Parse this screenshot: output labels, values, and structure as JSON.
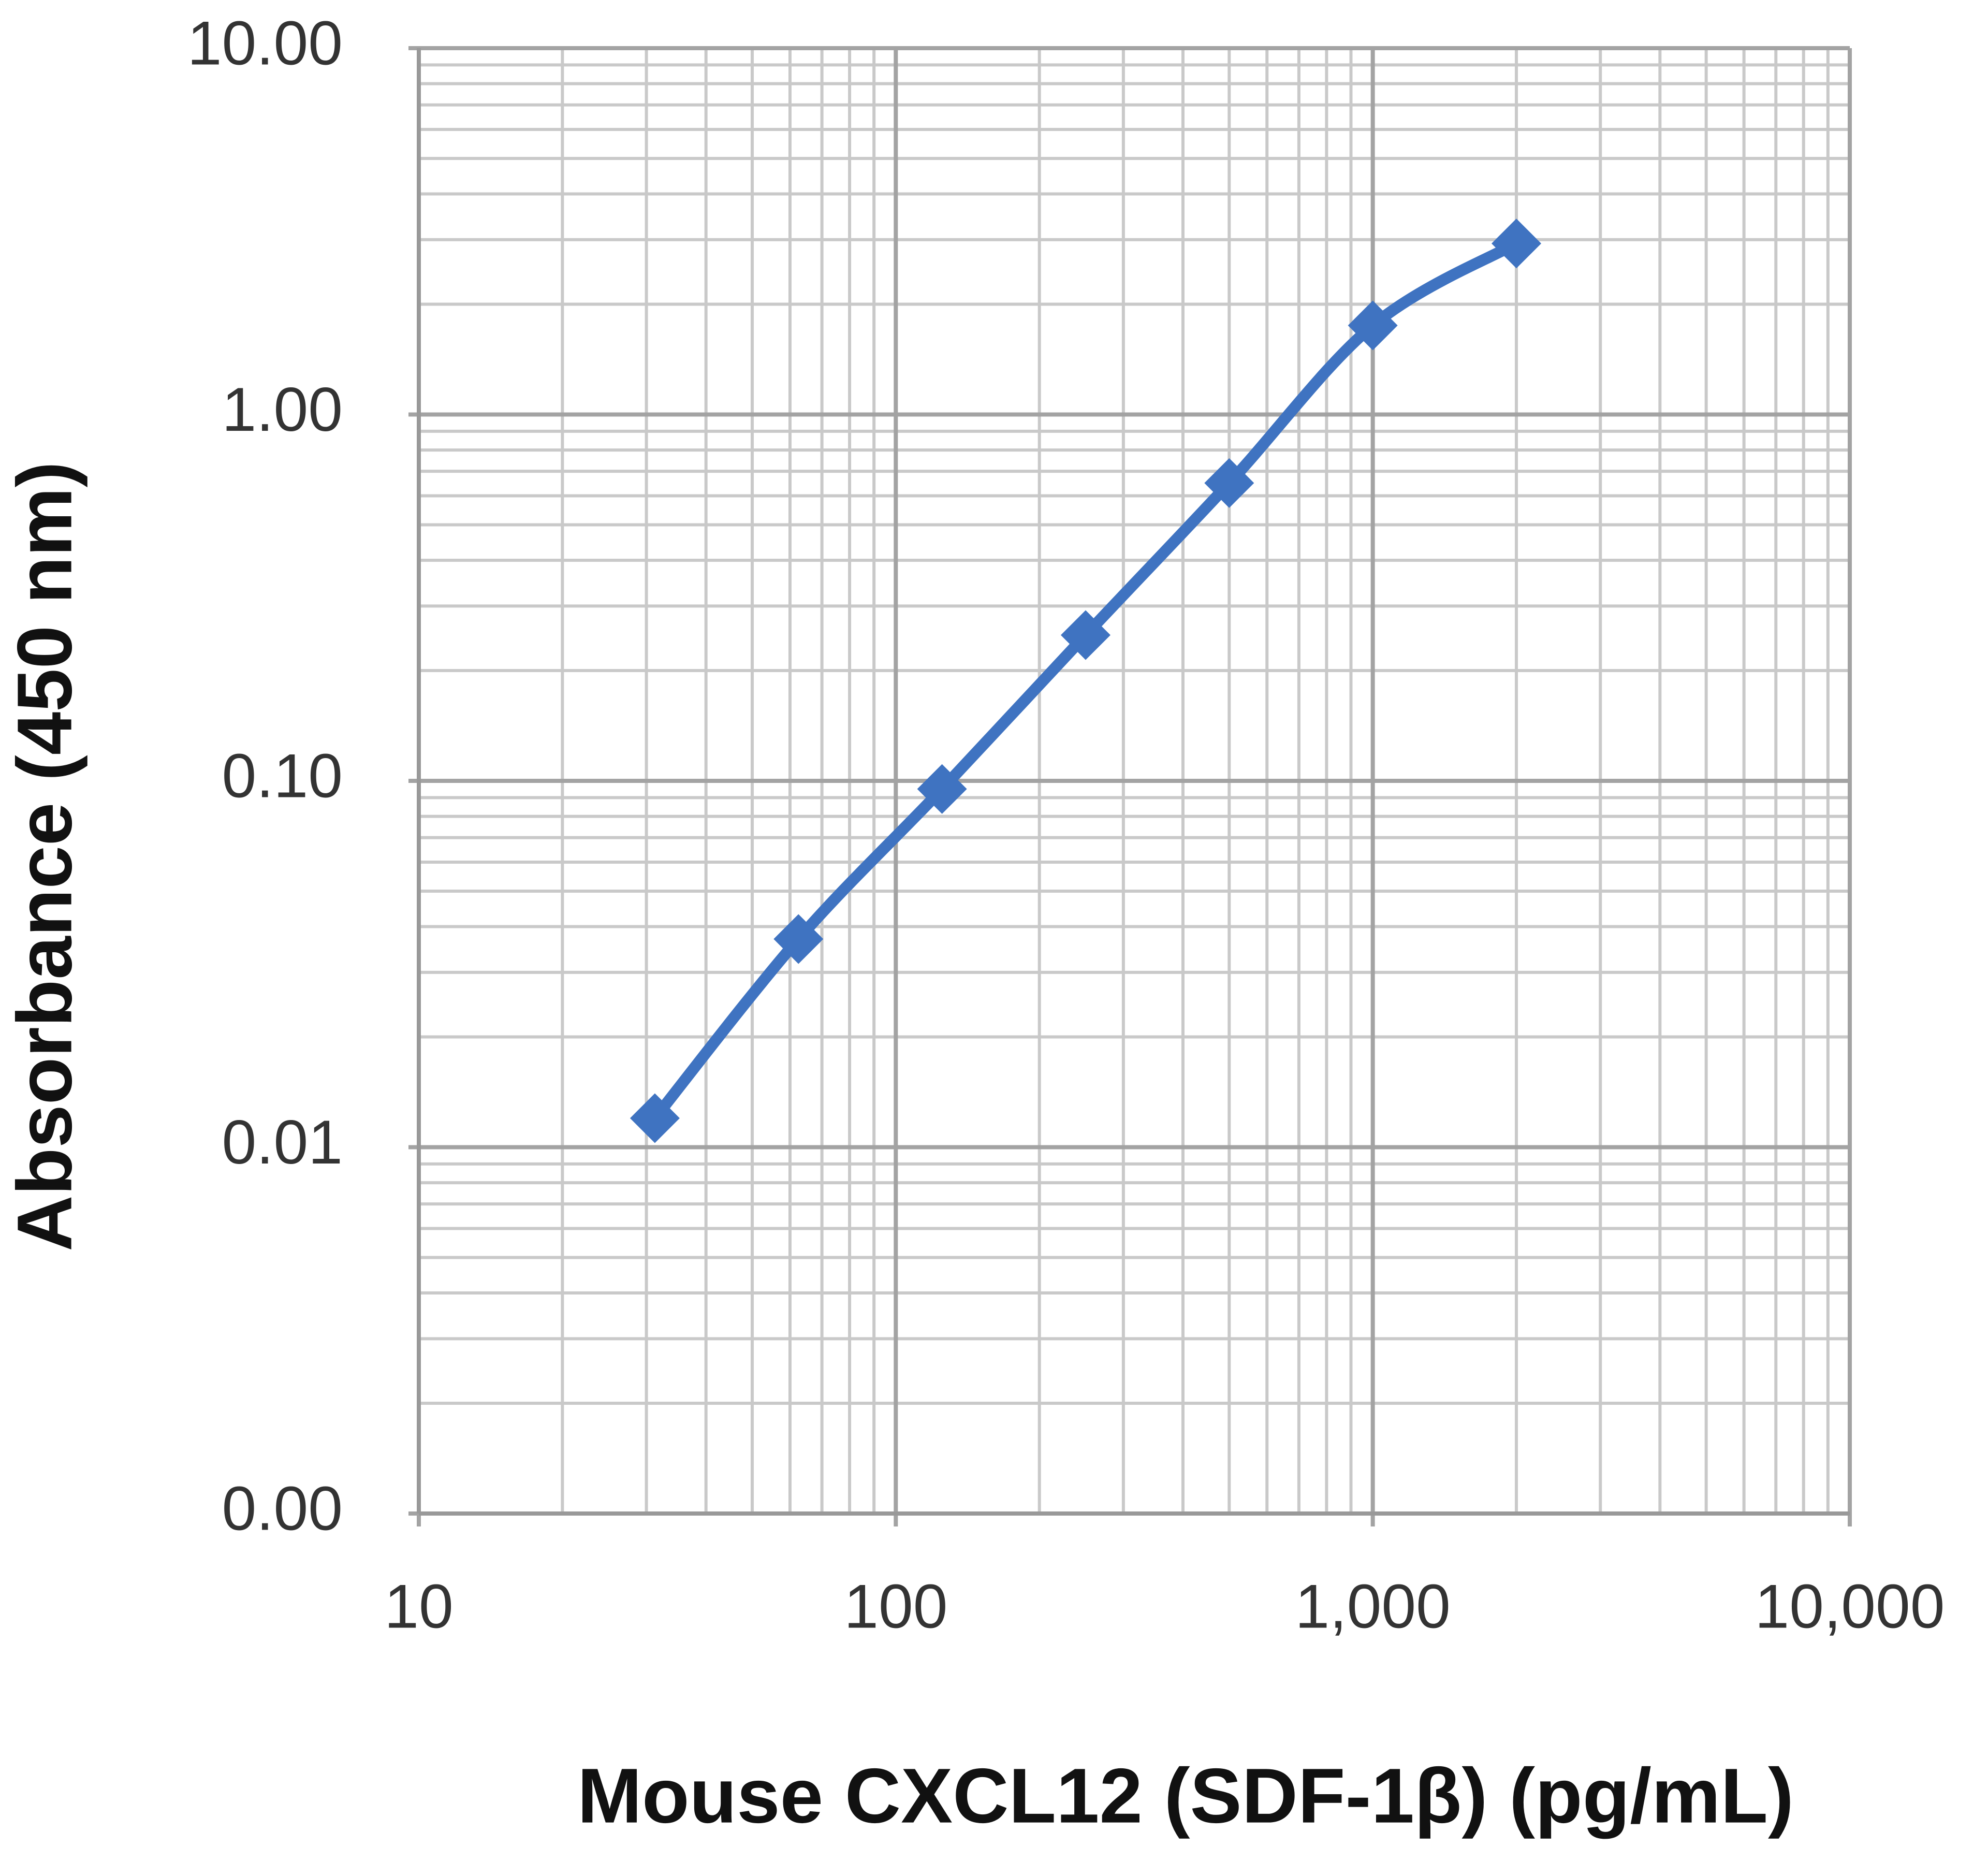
{
  "chart_data": {
    "type": "line",
    "x_label": "Mouse CXCL12 (SDF-1β) (pg/mL)",
    "y_label": "Absorbance  (450 nm)",
    "x": [
      31.25,
      62.5,
      125,
      250,
      500,
      1000,
      2000
    ],
    "series": [
      {
        "color": "#3f73c1",
        "values": [
          0.012,
          0.037,
          0.095,
          0.25,
          0.65,
          1.75,
          2.93
        ]
      }
    ],
    "xlim": [
      10,
      10000
    ],
    "xticks": [
      10,
      100,
      {
        "value": 1000,
        "label": "1,000"
      },
      {
        "value": 10000,
        "label": "10,000"
      }
    ],
    "ylim": [
      0.001,
      10
    ],
    "yticks": [
      {
        "value": 0.001,
        "label": "0.00"
      },
      0.01,
      {
        "value": 0.1,
        "label": "0.10"
      },
      {
        "value": 1,
        "label": "1.00"
      },
      {
        "value": 10,
        "label": "10.00"
      }
    ],
    "xlog": true,
    "ylog": true,
    "grid": true,
    "minor_grid": true,
    "smooth": true,
    "marker": "diamond"
  }
}
